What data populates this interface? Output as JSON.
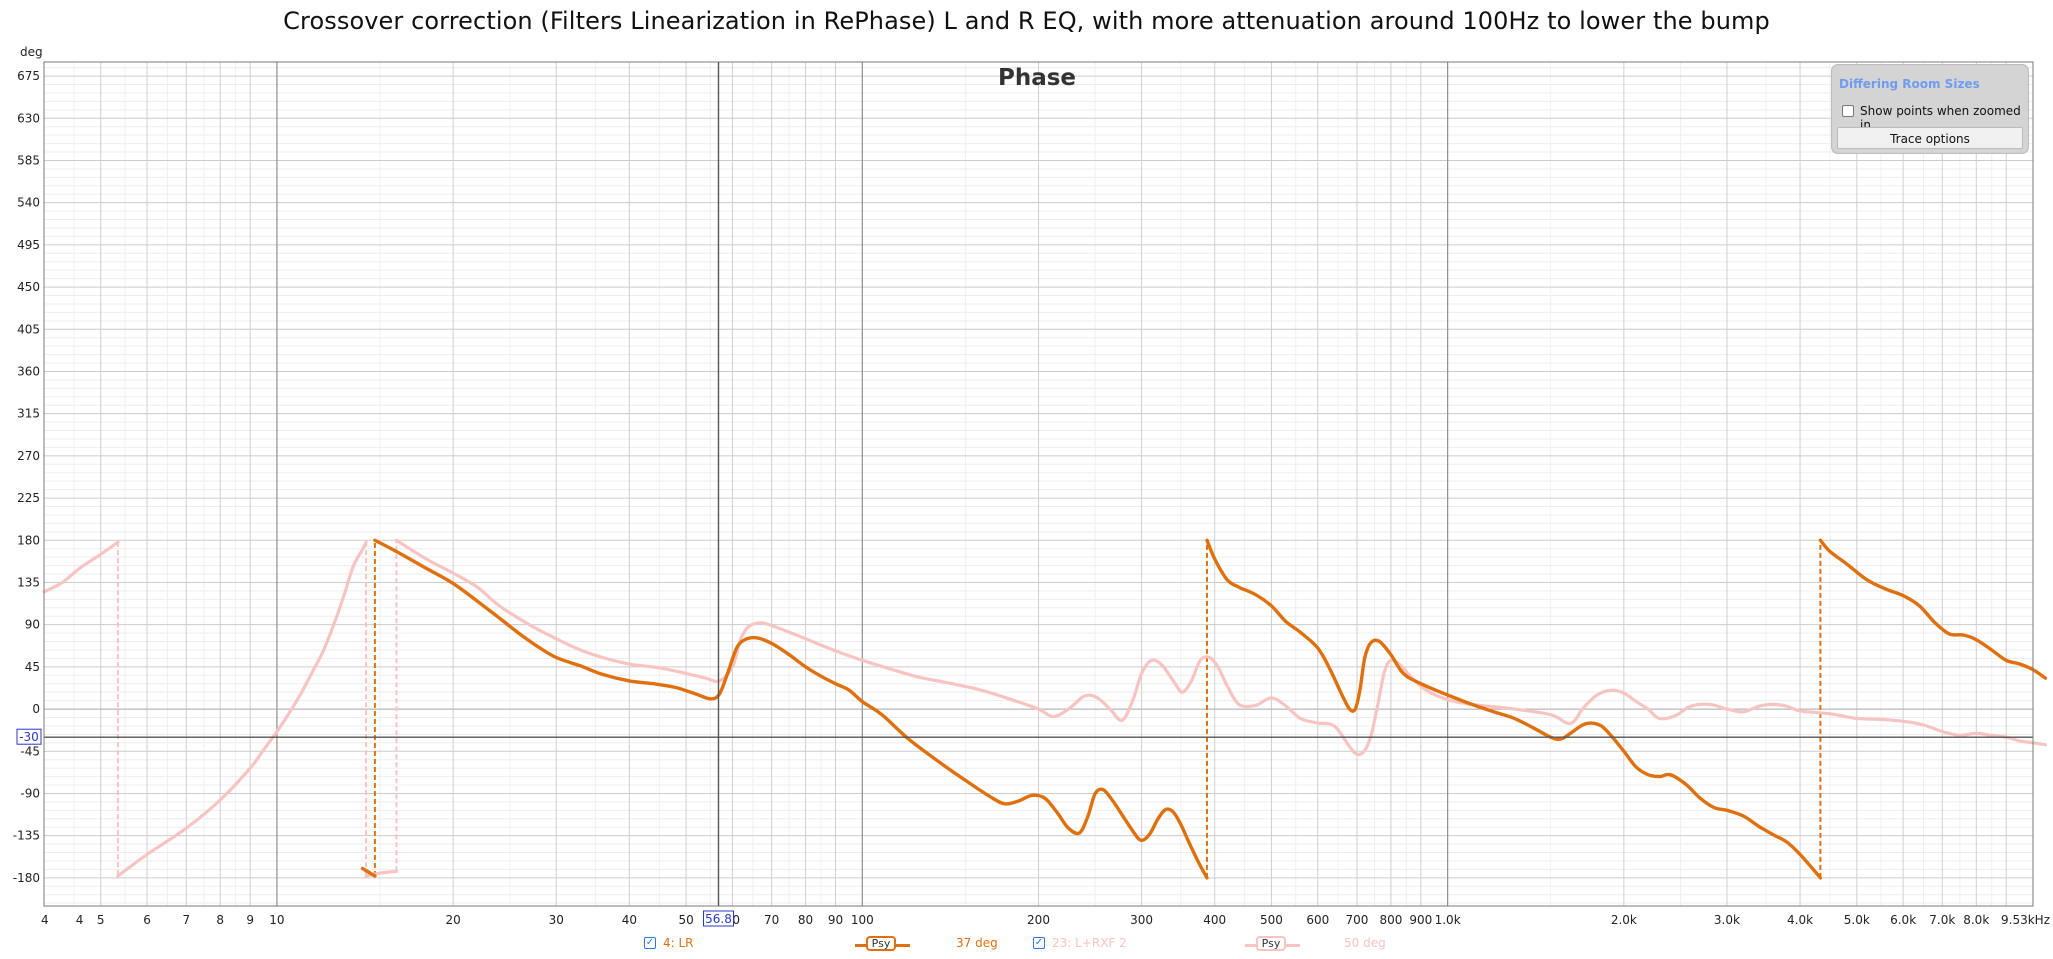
{
  "title": "Crossover correction (Filters Linearization in RePhase) L and R EQ, with more attenuation around 100Hz to lower the bump",
  "panel": {
    "header": "Differing Room Sizes",
    "show_points_label": "Show points when zoomed in",
    "trace_options_label": "Trace options"
  },
  "legend": {
    "trace1_label": "4: LR",
    "trace1_mode": "Psy",
    "trace1_readout": "37 deg",
    "trace2_label": "23: L+RXF 2",
    "trace2_mode": "Psy",
    "trace2_readout": "50 deg"
  },
  "colors": {
    "trace1": "#e0700e",
    "trace2": "#f7c4c2",
    "cursor_tag": "#2b39c8",
    "accent_blue": "#2b78e4"
  },
  "cursor": {
    "x_label": "56.8",
    "y_label": "-30"
  },
  "chart_data": {
    "type": "line",
    "title": "Phase",
    "ylabel": "deg",
    "xlabel": "",
    "x_scale": "log",
    "xlim": [
      4,
      10000
    ],
    "ylim": [
      -210,
      690
    ],
    "grid": true,
    "y_ticks": [
      675,
      630,
      585,
      540,
      495,
      450,
      405,
      360,
      315,
      270,
      225,
      180,
      135,
      90,
      45,
      0,
      -45,
      -90,
      -135,
      -180
    ],
    "x_ticks": [
      {
        "v": 4,
        "label": "4"
      },
      {
        "v": 4.6,
        "label": "4"
      },
      {
        "v": 5,
        "label": "5"
      },
      {
        "v": 6,
        "label": "6"
      },
      {
        "v": 7,
        "label": "7"
      },
      {
        "v": 8,
        "label": "8"
      },
      {
        "v": 9,
        "label": "9"
      },
      {
        "v": 10,
        "label": "10"
      },
      {
        "v": 20,
        "label": "20"
      },
      {
        "v": 30,
        "label": "30"
      },
      {
        "v": 40,
        "label": "40"
      },
      {
        "v": 50,
        "label": "50"
      },
      {
        "v": 60,
        "label": "60"
      },
      {
        "v": 70,
        "label": "70"
      },
      {
        "v": 80,
        "label": "80"
      },
      {
        "v": 90,
        "label": "90"
      },
      {
        "v": 100,
        "label": "100"
      },
      {
        "v": 200,
        "label": "200"
      },
      {
        "v": 300,
        "label": "300"
      },
      {
        "v": 400,
        "label": "400"
      },
      {
        "v": 500,
        "label": "500"
      },
      {
        "v": 600,
        "label": "600"
      },
      {
        "v": 700,
        "label": "700"
      },
      {
        "v": 800,
        "label": "800"
      },
      {
        "v": 900,
        "label": "900"
      },
      {
        "v": 1000,
        "label": "1.0k"
      },
      {
        "v": 2000,
        "label": "2.0k"
      },
      {
        "v": 3000,
        "label": "3.0k"
      },
      {
        "v": 4000,
        "label": "4.0k"
      },
      {
        "v": 5000,
        "label": "5.0k"
      },
      {
        "v": 6000,
        "label": "6.0k"
      },
      {
        "v": 7000,
        "label": "7.0k"
      },
      {
        "v": 8000,
        "label": "8.0k"
      },
      {
        "v": 9530,
        "label": "9.53kHz"
      }
    ],
    "cursor": {
      "x": 56.8,
      "y": -30
    },
    "series": [
      {
        "name": "4: LR",
        "color": "#e0700e",
        "segments": [
          [
            [
              14.0,
              -170
            ],
            [
              14.7,
              -178
            ]
          ],
          [
            [
              14.7,
              180
            ],
            [
              16,
              168
            ],
            [
              18,
              150
            ],
            [
              20,
              134
            ],
            [
              22,
              115
            ],
            [
              24,
              97
            ],
            [
              26,
              80
            ],
            [
              28,
              66
            ],
            [
              30,
              55
            ],
            [
              33,
              46
            ],
            [
              36,
              37
            ],
            [
              40,
              30
            ],
            [
              44,
              27
            ],
            [
              48,
              23
            ],
            [
              52,
              16
            ],
            [
              55,
              11
            ],
            [
              57,
              16
            ],
            [
              59,
              40
            ],
            [
              61,
              65
            ],
            [
              63,
              74
            ],
            [
              66,
              76
            ],
            [
              70,
              70
            ],
            [
              75,
              58
            ],
            [
              80,
              45
            ],
            [
              85,
              35
            ],
            [
              90,
              27
            ],
            [
              95,
              20
            ],
            [
              100,
              8
            ],
            [
              108,
              -6
            ],
            [
              120,
              -32
            ],
            [
              135,
              -56
            ],
            [
              150,
              -76
            ],
            [
              165,
              -93
            ],
            [
              175,
              -101
            ],
            [
              185,
              -98
            ],
            [
              195,
              -92
            ],
            [
              205,
              -95
            ],
            [
              215,
              -110
            ],
            [
              225,
              -127
            ],
            [
              235,
              -132
            ],
            [
              243,
              -114
            ],
            [
              250,
              -90
            ],
            [
              258,
              -86
            ],
            [
              268,
              -98
            ],
            [
              280,
              -116
            ],
            [
              292,
              -133
            ],
            [
              300,
              -140
            ],
            [
              310,
              -133
            ],
            [
              320,
              -117
            ],
            [
              330,
              -107
            ],
            [
              340,
              -110
            ],
            [
              350,
              -123
            ],
            [
              362,
              -143
            ],
            [
              375,
              -163
            ],
            [
              388,
              -180
            ]
          ],
          [
            [
              388,
              180
            ],
            [
              400,
              160
            ],
            [
              420,
              138
            ],
            [
              440,
              130
            ],
            [
              470,
              122
            ],
            [
              500,
              110
            ],
            [
              530,
              93
            ],
            [
              560,
              82
            ],
            [
              600,
              65
            ],
            [
              630,
              42
            ],
            [
              660,
              15
            ],
            [
              680,
              0
            ],
            [
              695,
              0
            ],
            [
              708,
              20
            ],
            [
              722,
              55
            ],
            [
              740,
              71
            ],
            [
              765,
              72
            ],
            [
              800,
              58
            ],
            [
              840,
              38
            ],
            [
              900,
              27
            ],
            [
              1000,
              15
            ],
            [
              1100,
              5
            ],
            [
              1200,
              -3
            ],
            [
              1300,
              -10
            ],
            [
              1400,
              -20
            ],
            [
              1500,
              -30
            ],
            [
              1560,
              -32
            ],
            [
              1620,
              -26
            ],
            [
              1700,
              -17
            ],
            [
              1760,
              -15
            ],
            [
              1830,
              -18
            ],
            [
              1900,
              -28
            ],
            [
              2000,
              -45
            ],
            [
              2100,
              -62
            ],
            [
              2200,
              -70
            ],
            [
              2300,
              -72
            ],
            [
              2400,
              -70
            ],
            [
              2550,
              -80
            ],
            [
              2700,
              -95
            ],
            [
              2850,
              -105
            ],
            [
              3000,
              -108
            ],
            [
              3200,
              -114
            ],
            [
              3400,
              -125
            ],
            [
              3600,
              -134
            ],
            [
              3800,
              -142
            ],
            [
              4000,
              -155
            ],
            [
              4200,
              -170
            ],
            [
              4333,
              -180
            ]
          ],
          [
            [
              4333,
              180
            ],
            [
              4500,
              168
            ],
            [
              4800,
              155
            ],
            [
              5200,
              138
            ],
            [
              5600,
              128
            ],
            [
              6000,
              121
            ],
            [
              6400,
              110
            ],
            [
              6800,
              92
            ],
            [
              7200,
              80
            ],
            [
              7600,
              79
            ],
            [
              8000,
              74
            ],
            [
              8500,
              63
            ],
            [
              9000,
              52
            ],
            [
              9500,
              48
            ],
            [
              10000,
              42
            ],
            [
              10500,
              33
            ]
          ]
        ]
      },
      {
        "name": "23: L+RXF 2",
        "color": "#f7c4c2",
        "segments": [
          [
            [
              4.0,
              125
            ],
            [
              4.3,
              135
            ],
            [
              4.6,
              150
            ],
            [
              5.0,
              165
            ],
            [
              5.35,
              178
            ]
          ],
          [
            [
              5.35,
              -178
            ],
            [
              6,
              -155
            ],
            [
              7,
              -127
            ],
            [
              8,
              -97
            ],
            [
              9,
              -63
            ],
            [
              9.5,
              -43
            ],
            [
              10,
              -24
            ],
            [
              10.5,
              -4
            ],
            [
              11,
              17
            ],
            [
              11.5,
              40
            ],
            [
              12,
              62
            ],
            [
              12.5,
              90
            ],
            [
              13,
              120
            ],
            [
              13.5,
              152
            ],
            [
              14.0,
              170
            ],
            [
              14.2,
              178
            ]
          ],
          [
            [
              14.2,
              -178
            ],
            [
              15,
              -175
            ],
            [
              16,
              -173
            ]
          ],
          [
            [
              16,
              180
            ],
            [
              18,
              160
            ],
            [
              20,
              145
            ],
            [
              22,
              130
            ],
            [
              24,
              110
            ],
            [
              27,
              90
            ],
            [
              30,
              75
            ],
            [
              33,
              63
            ],
            [
              36,
              55
            ],
            [
              40,
              48
            ],
            [
              45,
              44
            ],
            [
              50,
              38
            ],
            [
              54,
              33
            ],
            [
              57,
              30
            ],
            [
              60,
              45
            ],
            [
              62,
              75
            ],
            [
              64,
              88
            ],
            [
              67,
              92
            ],
            [
              70,
              89
            ],
            [
              75,
              82
            ],
            [
              80,
              75
            ],
            [
              90,
              62
            ],
            [
              100,
              52
            ],
            [
              110,
              44
            ],
            [
              125,
              34
            ],
            [
              140,
              28
            ],
            [
              160,
              20
            ],
            [
              180,
              10
            ],
            [
              200,
              0
            ],
            [
              212,
              -8
            ],
            [
              225,
              0
            ],
            [
              240,
              14
            ],
            [
              252,
              12
            ],
            [
              265,
              0
            ],
            [
              278,
              -12
            ],
            [
              290,
              10
            ],
            [
              300,
              38
            ],
            [
              312,
              52
            ],
            [
              325,
              47
            ],
            [
              340,
              30
            ],
            [
              352,
              18
            ],
            [
              365,
              30
            ],
            [
              378,
              52
            ],
            [
              392,
              55
            ],
            [
              405,
              45
            ],
            [
              420,
              25
            ],
            [
              440,
              5
            ],
            [
              470,
              4
            ],
            [
              500,
              12
            ],
            [
              530,
              3
            ],
            [
              560,
              -10
            ],
            [
              600,
              -15
            ],
            [
              640,
              -18
            ],
            [
              680,
              -40
            ],
            [
              700,
              -48
            ],
            [
              720,
              -45
            ],
            [
              740,
              -28
            ],
            [
              760,
              5
            ],
            [
              780,
              40
            ],
            [
              800,
              52
            ],
            [
              830,
              47
            ],
            [
              870,
              33
            ],
            [
              920,
              20
            ],
            [
              1000,
              10
            ],
            [
              1100,
              5
            ],
            [
              1300,
              0
            ],
            [
              1500,
              -6
            ],
            [
              1600,
              -15
            ],
            [
              1650,
              -12
            ],
            [
              1700,
              0
            ],
            [
              1800,
              15
            ],
            [
              1900,
              20
            ],
            [
              2000,
              17
            ],
            [
              2100,
              8
            ],
            [
              2200,
              0
            ],
            [
              2300,
              -10
            ],
            [
              2450,
              -7
            ],
            [
              2600,
              3
            ],
            [
              2800,
              5
            ],
            [
              3000,
              0
            ],
            [
              3200,
              -3
            ],
            [
              3400,
              3
            ],
            [
              3600,
              5
            ],
            [
              3800,
              3
            ],
            [
              4000,
              -2
            ],
            [
              4500,
              -5
            ],
            [
              5000,
              -10
            ],
            [
              5500,
              -11
            ],
            [
              6000,
              -13
            ],
            [
              6500,
              -17
            ],
            [
              7000,
              -24
            ],
            [
              7500,
              -28
            ],
            [
              8000,
              -26
            ],
            [
              8500,
              -28
            ],
            [
              9000,
              -30
            ],
            [
              9500,
              -34
            ],
            [
              10000,
              -36
            ],
            [
              10500,
              -38
            ]
          ]
        ]
      }
    ]
  }
}
